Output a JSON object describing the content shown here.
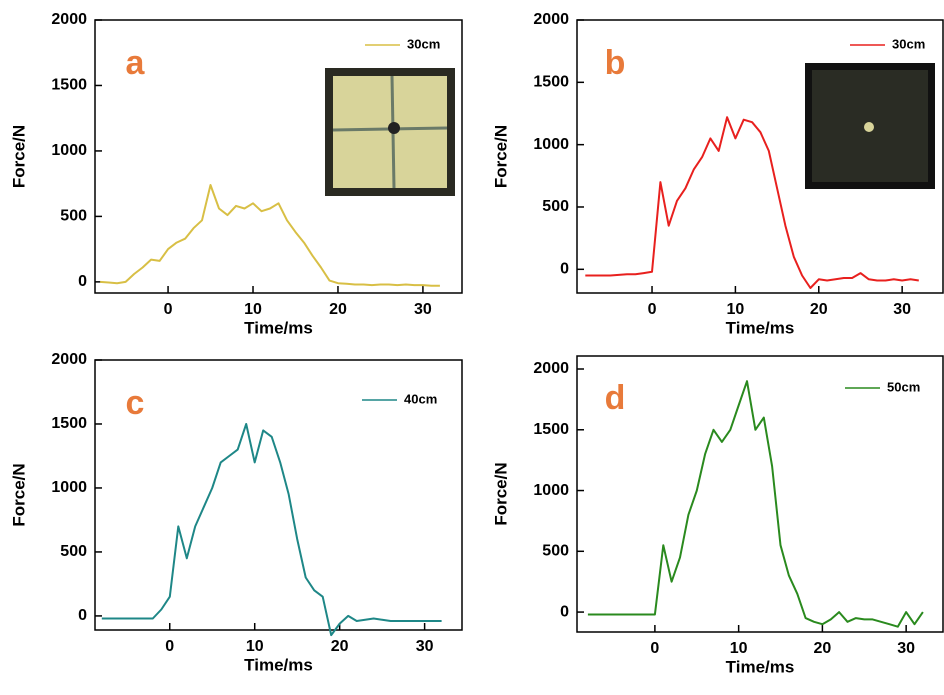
{
  "chart_data": [
    {
      "type": "line",
      "annotation": "a",
      "x_label": "Time/ms",
      "y_label": "Force/N",
      "x": [
        -8,
        -7,
        -6,
        -5,
        -4,
        -3,
        -2,
        -1,
        0,
        1,
        2,
        3,
        4,
        5,
        6,
        7,
        8,
        9,
        10,
        11,
        12,
        13,
        14,
        15,
        16,
        17,
        18,
        19,
        20,
        21,
        22,
        23,
        24,
        25,
        26,
        27,
        28,
        29,
        30,
        31,
        32
      ],
      "series": [
        {
          "name": "30cm",
          "color": "#d8bf45",
          "values": [
            0,
            -5,
            -10,
            0,
            60,
            110,
            170,
            160,
            250,
            300,
            330,
            410,
            470,
            740,
            560,
            510,
            580,
            560,
            600,
            540,
            560,
            600,
            470,
            380,
            300,
            200,
            110,
            10,
            -10,
            -15,
            -20,
            -20,
            -25,
            -20,
            -20,
            -25,
            -20,
            -25,
            -25,
            -30,
            -30
          ]
        }
      ],
      "xlim": [
        -8.6,
        34.6
      ],
      "ylim": [
        -85,
        2000
      ],
      "xticks": [
        0,
        10,
        20,
        30
      ],
      "yticks": [
        0,
        500,
        1000,
        1500,
        2000
      ]
    },
    {
      "type": "line",
      "annotation": "b",
      "x_label": "Time/ms",
      "y_label": "Force/N",
      "x": [
        -8,
        -7,
        -6,
        -5,
        -4,
        -3,
        -2,
        -1,
        0,
        1,
        2,
        3,
        4,
        5,
        6,
        7,
        8,
        9,
        10,
        11,
        12,
        13,
        14,
        15,
        16,
        17,
        18,
        19,
        20,
        21,
        22,
        23,
        24,
        25,
        26,
        27,
        28,
        29,
        30,
        31,
        32
      ],
      "series": [
        {
          "name": "30cm",
          "color": "#e8201e",
          "values": [
            -50,
            -50,
            -50,
            -50,
            -45,
            -40,
            -40,
            -30,
            -20,
            700,
            350,
            550,
            650,
            800,
            900,
            1050,
            950,
            1220,
            1050,
            1200,
            1180,
            1100,
            950,
            650,
            350,
            100,
            -50,
            -150,
            -80,
            -90,
            -80,
            -70,
            -70,
            -30,
            -80,
            -90,
            -90,
            -80,
            -90,
            -80,
            -90
          ]
        }
      ],
      "xlim": [
        -9,
        34.9
      ],
      "ylim": [
        -190,
        2000
      ],
      "xticks": [
        0,
        10,
        20,
        30
      ],
      "yticks": [
        0,
        500,
        1000,
        1500,
        2000
      ]
    },
    {
      "type": "line",
      "annotation": "c",
      "x_label": "Time/ms",
      "y_label": "Force/N",
      "x": [
        -8,
        -7,
        -6,
        -5,
        -4,
        -3,
        -2,
        -1,
        0,
        1,
        2,
        3,
        4,
        5,
        6,
        7,
        8,
        9,
        10,
        11,
        12,
        13,
        14,
        15,
        16,
        17,
        18,
        19,
        20,
        21,
        22,
        23,
        24,
        25,
        26,
        27,
        28,
        29,
        30,
        31,
        32
      ],
      "series": [
        {
          "name": "40cm",
          "color": "#1e8787",
          "values": [
            -20,
            -20,
            -20,
            -20,
            -20,
            -20,
            -20,
            50,
            150,
            700,
            450,
            700,
            850,
            1000,
            1200,
            1250,
            1300,
            1500,
            1200,
            1450,
            1400,
            1200,
            950,
            600,
            300,
            200,
            150,
            -150,
            -60,
            0,
            -40,
            -30,
            -20,
            -30,
            -40,
            -40,
            -40,
            -40,
            -40,
            -40,
            -40
          ]
        }
      ],
      "xlim": [
        -8.8,
        34.4
      ],
      "ylim": [
        -110,
        2000
      ],
      "xticks": [
        0,
        10,
        20,
        30
      ],
      "yticks": [
        0,
        500,
        1000,
        1500,
        2000
      ]
    },
    {
      "type": "line",
      "annotation": "d",
      "x_label": "Time/ms",
      "y_label": "Force/N",
      "x": [
        -8,
        -7,
        -6,
        -5,
        -4,
        -3,
        -2,
        -1,
        0,
        1,
        2,
        3,
        4,
        5,
        6,
        7,
        8,
        9,
        10,
        11,
        12,
        13,
        14,
        15,
        16,
        17,
        18,
        19,
        20,
        21,
        22,
        23,
        24,
        25,
        26,
        27,
        28,
        29,
        30,
        31,
        32
      ],
      "series": [
        {
          "name": "50cm",
          "color": "#2a8a1e",
          "values": [
            -20,
            -20,
            -20,
            -20,
            -20,
            -20,
            -20,
            -20,
            -20,
            550,
            250,
            450,
            800,
            1000,
            1300,
            1500,
            1400,
            1500,
            1700,
            1900,
            1500,
            1600,
            1200,
            550,
            300,
            150,
            -50,
            -80,
            -100,
            -60,
            0,
            -80,
            -50,
            -60,
            -60,
            -80,
            -100,
            -120,
            0,
            -100,
            0
          ]
        }
      ],
      "xlim": [
        -9.3,
        34.4
      ],
      "ylim": [
        -164,
        2107
      ],
      "xticks": [
        0,
        10,
        20,
        30
      ],
      "yticks": [
        0,
        500,
        1000,
        1500,
        2000
      ]
    }
  ]
}
